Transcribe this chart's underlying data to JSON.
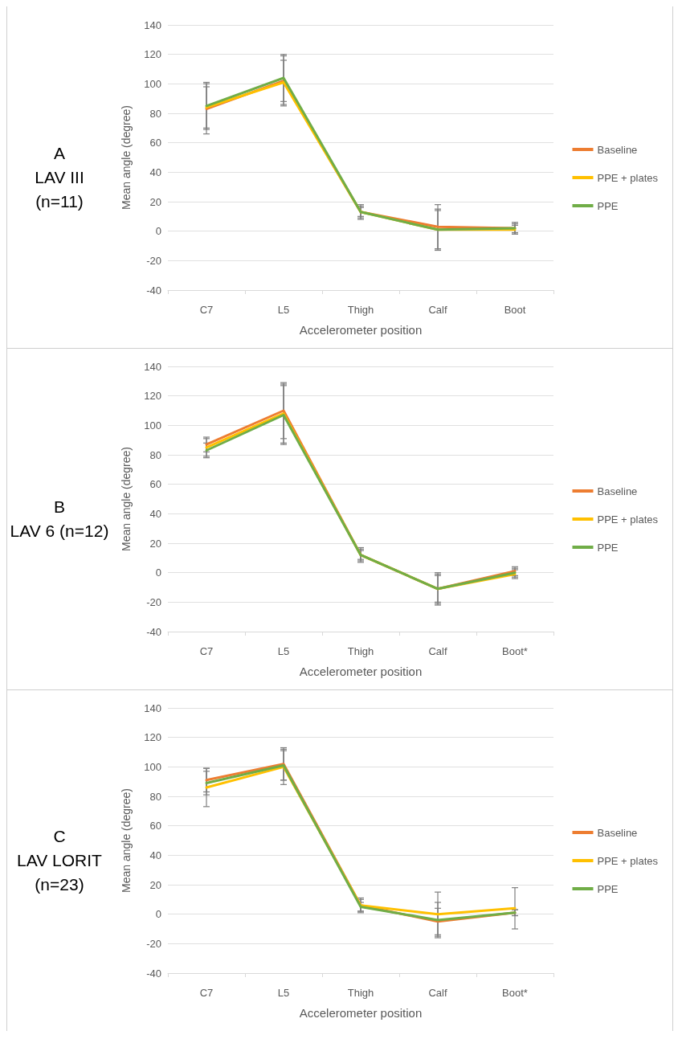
{
  "chart_data": [
    {
      "type": "line",
      "title": "A",
      "subtitle": "LAV III (n=11)",
      "xlabel": "Accelerometer position",
      "ylabel": "Mean angle (degree)",
      "categories": [
        "C7",
        "L5",
        "Thigh",
        "Calf",
        "Boot"
      ],
      "ylim": [
        -40,
        140
      ],
      "yticks": [
        -40,
        -20,
        0,
        20,
        40,
        60,
        80,
        100,
        120,
        140
      ],
      "grid": "y",
      "legend": "right",
      "marker": "none",
      "line_style": "solid",
      "series": [
        {
          "name": "Baseline",
          "color": "#ed7d31",
          "values": [
            83,
            102,
            13,
            3,
            2
          ],
          "errors": [
            17,
            17,
            4,
            15,
            3
          ]
        },
        {
          "name": "PPE + plates",
          "color": "#ffc000",
          "values": [
            84,
            101,
            13,
            1,
            1
          ],
          "errors": [
            14,
            15,
            3,
            13,
            3
          ]
        },
        {
          "name": "PPE",
          "color": "#70ad47",
          "values": [
            85,
            104,
            13,
            1,
            2
          ],
          "errors": [
            16,
            16,
            5,
            14,
            4
          ]
        }
      ]
    },
    {
      "type": "line",
      "title": "B",
      "subtitle": "LAV 6 (n=12)",
      "xlabel": "Accelerometer position",
      "ylabel": "Mean angle (degree)",
      "categories": [
        "C7",
        "L5",
        "Thigh",
        "Calf",
        "Boot*"
      ],
      "ylim": [
        -40,
        140
      ],
      "yticks": [
        -40,
        -20,
        0,
        20,
        40,
        60,
        80,
        100,
        120,
        140
      ],
      "grid": "y",
      "legend": "right",
      "marker": "none",
      "line_style": "solid",
      "series": [
        {
          "name": "Baseline",
          "color": "#ed7d31",
          "values": [
            87,
            110,
            12,
            -11,
            1
          ],
          "errors": [
            5,
            19,
            5,
            10,
            3
          ]
        },
        {
          "name": "PPE + plates",
          "color": "#ffc000",
          "values": [
            85,
            108,
            12,
            -11,
            -1
          ],
          "errors": [
            6,
            20,
            4,
            9,
            3
          ]
        },
        {
          "name": "PPE",
          "color": "#70ad47",
          "values": [
            83,
            107,
            12,
            -11,
            0
          ],
          "errors": [
            5,
            20,
            3,
            11,
            3
          ]
        }
      ]
    },
    {
      "type": "line",
      "title": "C",
      "subtitle": "LAV LORIT (n=23)",
      "xlabel": "Accelerometer position",
      "ylabel": "Mean angle (degree)",
      "categories": [
        "C7",
        "L5",
        "Thigh",
        "Calf",
        "Boot*"
      ],
      "ylim": [
        -40,
        140
      ],
      "yticks": [
        -40,
        -20,
        0,
        20,
        40,
        60,
        80,
        100,
        120,
        140
      ],
      "grid": "y",
      "legend": "right",
      "marker": "none",
      "line_style": "solid",
      "series": [
        {
          "name": "Baseline",
          "color": "#ed7d31",
          "values": [
            91,
            102,
            6,
            -5,
            1
          ],
          "errors": [
            8,
            11,
            4,
            9,
            2
          ]
        },
        {
          "name": "PPE + plates",
          "color": "#ffc000",
          "values": [
            86,
            100,
            6,
            0,
            4
          ],
          "errors": [
            13,
            12,
            5,
            15,
            14
          ]
        },
        {
          "name": "PPE",
          "color": "#70ad47",
          "values": [
            89,
            101,
            5,
            -4,
            1
          ],
          "errors": [
            8,
            10,
            3,
            12,
            2
          ]
        }
      ]
    }
  ]
}
